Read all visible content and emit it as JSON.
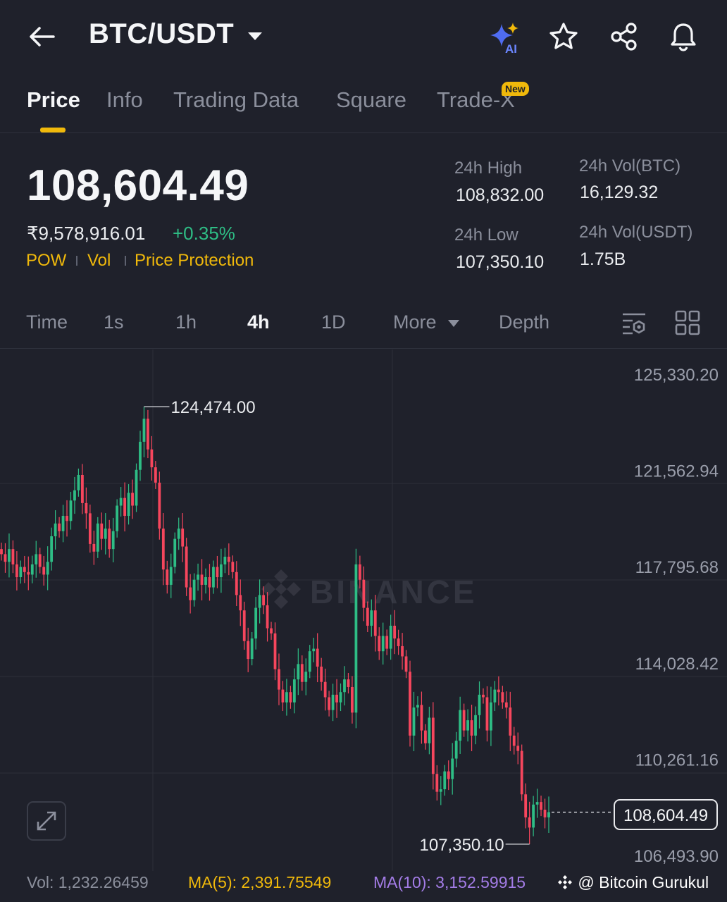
{
  "header": {
    "pair": "BTC/USDT",
    "ai_badge": "AI",
    "icons": [
      "back-arrow-icon",
      "caret-down-icon",
      "ai-sparkle-icon",
      "star-icon",
      "share-icon",
      "bell-icon"
    ]
  },
  "tabs": [
    {
      "label": "Price",
      "active": true
    },
    {
      "label": "Info"
    },
    {
      "label": "Trading Data"
    },
    {
      "label": "Square"
    },
    {
      "label": "Trade-X",
      "badge": "New"
    }
  ],
  "price": {
    "last": "108,604.49",
    "fiat": "₹9,578,916.01",
    "change": "+0.35%",
    "tags": [
      "POW",
      "Vol",
      "Price Protection"
    ]
  },
  "stats": {
    "high_label": "24h High",
    "high_value": "108,832.00",
    "low_label": "24h Low",
    "low_value": "107,350.10",
    "vol_btc_label": "24h Vol(BTC)",
    "vol_btc_value": "16,129.32",
    "vol_usdt_label": "24h Vol(USDT)",
    "vol_usdt_value": "1.75B"
  },
  "timebar": {
    "items": [
      "Time",
      "1s",
      "1h",
      "4h",
      "1D",
      "More",
      "Depth"
    ],
    "active": "4h"
  },
  "chart_data": {
    "type": "candlestick",
    "watermark": "BINANCE",
    "y_ticks": [
      "125,330.20",
      "121,562.94",
      "117,795.68",
      "114,028.42",
      "110,261.16",
      "106,493.90"
    ],
    "y_tick_values": [
      125330.2,
      121562.94,
      117795.68,
      114028.42,
      110261.16,
      106493.9
    ],
    "high_label": "124,474.00",
    "high_value": 124474.0,
    "low_label": "107,350.10",
    "low_value": 107350.1,
    "current_label": "108,604.49",
    "current_value": 108604.49,
    "colors": {
      "up": "#2ebd85",
      "down": "#f6465d"
    },
    "closes": [
      118700,
      118400,
      118900,
      118300,
      117800,
      118200,
      118000,
      117900,
      118300,
      118700,
      118200,
      117900,
      118400,
      119400,
      119900,
      119600,
      120200,
      120000,
      120800,
      121200,
      121800,
      120700,
      120300,
      119100,
      118800,
      119900,
      119300,
      119700,
      118900,
      119600,
      120600,
      120900,
      120200,
      121100,
      120600,
      122000,
      123100,
      124000,
      122800,
      122100,
      121500,
      119700,
      118100,
      117500,
      118200,
      119300,
      119700,
      119000,
      117400,
      116900,
      117700,
      117900,
      117500,
      117800,
      117400,
      118200,
      117800,
      118300,
      118600,
      118400,
      118000,
      117100,
      116500,
      115300,
      114600,
      115400,
      116600,
      117100,
      116700,
      115800,
      115600,
      114200,
      113400,
      112900,
      113300,
      112900,
      113800,
      114400,
      113700,
      114100,
      114900,
      115000,
      114300,
      113700,
      113100,
      112600,
      113200,
      112900,
      113300,
      113800,
      113500,
      112500,
      118300,
      117700,
      116600,
      115900,
      116500,
      115500,
      114900,
      115500,
      115000,
      115900,
      115400,
      115100,
      114700,
      114100,
      111600,
      112700,
      112800,
      111800,
      111300,
      112300,
      110100,
      109400,
      109500,
      110200,
      109900,
      110700,
      111400,
      112600,
      111800,
      112200,
      111600,
      112400,
      113200,
      113100,
      111800,
      112900,
      113400,
      113300,
      112900,
      112700,
      111600,
      111200,
      111000,
      109300,
      108400,
      108000,
      108900,
      109000,
      108700,
      108400,
      108604.49
    ]
  },
  "footer": {
    "vol": "Vol: 1,232.26459",
    "ma5": "MA(5): 2,391.75549",
    "ma10": "MA(10): 3,152.59915",
    "watermark": "@ Bitcoin Gurukul"
  }
}
